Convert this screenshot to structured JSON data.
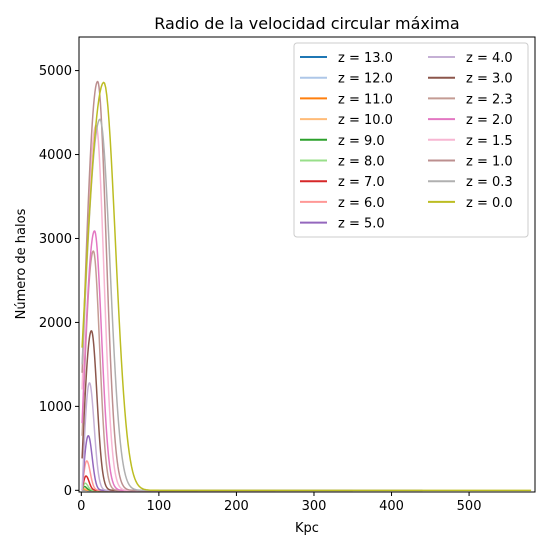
{
  "chart_data": {
    "type": "line",
    "title": "Radio de la velocidad circular máxima",
    "xlabel": "Kpc",
    "ylabel": "Número de halos",
    "xlim": [
      -3,
      585
    ],
    "ylim": [
      -20,
      5400
    ],
    "xticks": [
      0,
      100,
      200,
      300,
      400,
      500
    ],
    "yticks": [
      0,
      1000,
      2000,
      3000,
      4000,
      5000
    ],
    "legend_position": "upper right",
    "series": [
      {
        "name": "z = 13.0",
        "color": "#1f77b4",
        "peak_x": 2,
        "peak_y": 2,
        "width": 2,
        "x_end": 15,
        "start_y": 0
      },
      {
        "name": "z = 12.0",
        "color": "#aec7e8",
        "peak_x": 2.5,
        "peak_y": 5,
        "width": 2,
        "x_end": 20,
        "start_y": 0
      },
      {
        "name": "z = 11.0",
        "color": "#ff7f0e",
        "peak_x": 3,
        "peak_y": 10,
        "width": 2.5,
        "x_end": 25,
        "start_y": 0
      },
      {
        "name": "z = 10.0",
        "color": "#ffbb78",
        "peak_x": 3.5,
        "peak_y": 20,
        "width": 3,
        "x_end": 30,
        "start_y": 0
      },
      {
        "name": "z = 9.0",
        "color": "#2ca02c",
        "peak_x": 4,
        "peak_y": 45,
        "width": 3,
        "x_end": 35,
        "start_y": 0
      },
      {
        "name": "z = 8.0",
        "color": "#98df8a",
        "peak_x": 5,
        "peak_y": 85,
        "width": 3.5,
        "x_end": 45,
        "start_y": 0
      },
      {
        "name": "z = 7.0",
        "color": "#d62728",
        "peak_x": 6,
        "peak_y": 170,
        "width": 4,
        "x_end": 55,
        "start_y": 0
      },
      {
        "name": "z = 6.0",
        "color": "#ff9896",
        "peak_x": 7,
        "peak_y": 350,
        "width": 4.5,
        "x_end": 70,
        "start_y": 0
      },
      {
        "name": "z = 5.0",
        "color": "#9467bd",
        "peak_x": 9,
        "peak_y": 650,
        "width": 5,
        "x_end": 90,
        "start_y": 0
      },
      {
        "name": "z = 4.0",
        "color": "#c5b0d5",
        "peak_x": 10.5,
        "peak_y": 1280,
        "width": 6,
        "x_end": 120,
        "start_y": 0
      },
      {
        "name": "z = 3.0",
        "color": "#8c564b",
        "peak_x": 13,
        "peak_y": 1900,
        "width": 7,
        "x_end": 150,
        "start_y": 380
      },
      {
        "name": "z = 2.3",
        "color": "#c49c94",
        "peak_x": 15.5,
        "peak_y": 2850,
        "width": 8,
        "x_end": 200,
        "start_y": 650
      },
      {
        "name": "z = 2.0",
        "color": "#e377c2",
        "peak_x": 17,
        "peak_y": 3090,
        "width": 9,
        "x_end": 250,
        "start_y": 800
      },
      {
        "name": "z = 1.5",
        "color": "#f7b6d2",
        "peak_x": 19,
        "peak_y": 4350,
        "width": 10,
        "x_end": 300,
        "start_y": 1200
      },
      {
        "name": "z = 1.0",
        "color": "#bc8f8f",
        "peak_x": 21,
        "peak_y": 4870,
        "width": 11,
        "x_end": 350,
        "start_y": 1400
      },
      {
        "name": "z = 0.3",
        "color": "#b0b0b0",
        "peak_x": 24,
        "peak_y": 4420,
        "width": 13,
        "x_end": 440,
        "start_y": 1500
      },
      {
        "name": "z = 0.0",
        "color": "#bcbd22",
        "peak_x": 29,
        "peak_y": 4860,
        "width": 15,
        "x_end": 580,
        "start_y": 1700
      }
    ]
  }
}
